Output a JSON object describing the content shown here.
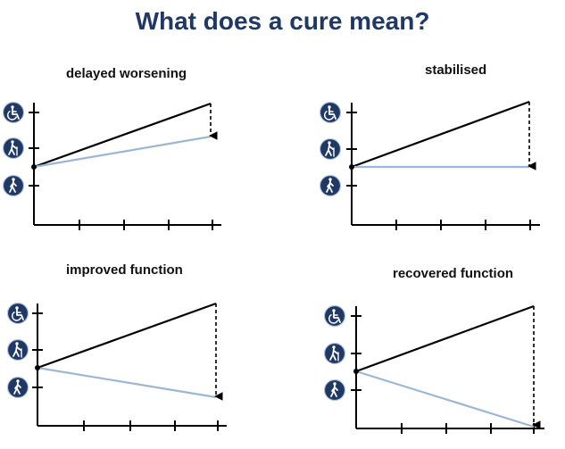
{
  "title": "What does a cure mean?",
  "panels": [
    {
      "title": "delayed worsening"
    },
    {
      "title": "stabilised"
    },
    {
      "title": "improved function"
    },
    {
      "title": "recovered function"
    }
  ],
  "icons": [
    "wheelchair-icon",
    "walking-stick-icon",
    "walking-person-icon"
  ],
  "colors": {
    "title": "#1f3864",
    "icon_bg": "#1f3864",
    "untreated": "#000000",
    "treated": "#9ab7d6"
  }
}
